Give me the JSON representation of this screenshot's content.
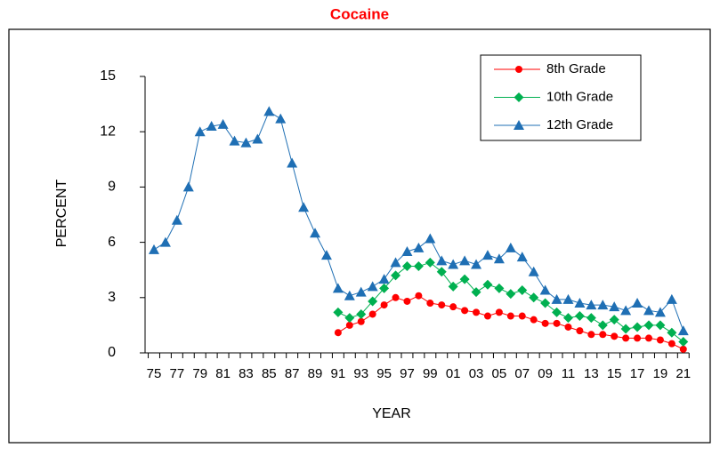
{
  "chart_data": {
    "type": "line",
    "title": "Cocaine",
    "x_label": "YEAR",
    "y_label": "PERCENT",
    "categories": [
      "75",
      null,
      "77",
      null,
      "79",
      null,
      "81",
      null,
      "83",
      null,
      "85",
      null,
      "87",
      null,
      "89",
      null,
      "91",
      null,
      "93",
      null,
      "95",
      null,
      "97",
      null,
      "99",
      null,
      "01",
      null,
      "03",
      null,
      "05",
      null,
      "07",
      null,
      "09",
      null,
      "11",
      null,
      "13",
      null,
      "15",
      null,
      "17",
      null,
      "19",
      null,
      "21"
    ],
    "series": [
      {
        "name": "8th Grade",
        "color": "#ff0000",
        "marker": "circle",
        "values": [
          null,
          null,
          null,
          null,
          null,
          null,
          null,
          null,
          null,
          null,
          null,
          null,
          null,
          null,
          null,
          null,
          1.1,
          1.5,
          1.7,
          2.1,
          2.6,
          3.0,
          2.8,
          3.1,
          2.7,
          2.6,
          2.5,
          2.3,
          2.2,
          2.0,
          2.2,
          2.0,
          2.0,
          1.8,
          1.6,
          1.6,
          1.4,
          1.2,
          1.0,
          1.0,
          0.9,
          0.8,
          0.8,
          0.8,
          0.7,
          0.5,
          0.2
        ]
      },
      {
        "name": "10th Grade",
        "color": "#00b050",
        "marker": "diamond",
        "values": [
          null,
          null,
          null,
          null,
          null,
          null,
          null,
          null,
          null,
          null,
          null,
          null,
          null,
          null,
          null,
          null,
          2.2,
          1.9,
          2.1,
          2.8,
          3.5,
          4.2,
          4.7,
          4.7,
          4.9,
          4.4,
          3.6,
          4.0,
          3.3,
          3.7,
          3.5,
          3.2,
          3.4,
          3.0,
          2.7,
          2.2,
          1.9,
          2.0,
          1.9,
          1.5,
          1.8,
          1.3,
          1.4,
          1.5,
          1.5,
          1.1,
          0.6
        ]
      },
      {
        "name": "12th Grade",
        "color": "#1f6fb4",
        "marker": "triangle",
        "values": [
          5.6,
          6.0,
          7.2,
          9.0,
          12.0,
          12.3,
          12.4,
          11.5,
          11.4,
          11.6,
          13.1,
          12.7,
          10.3,
          7.9,
          6.5,
          5.3,
          3.5,
          3.1,
          3.3,
          3.6,
          4.0,
          4.9,
          5.5,
          5.7,
          6.2,
          5.0,
          4.8,
          5.0,
          4.8,
          5.3,
          5.1,
          5.7,
          5.2,
          4.4,
          3.4,
          2.9,
          2.9,
          2.7,
          2.6,
          2.6,
          2.5,
          2.3,
          2.7,
          2.3,
          2.2,
          2.9,
          1.2
        ]
      }
    ],
    "ylim": [
      0,
      15
    ],
    "yticks": [
      0,
      3,
      6,
      9,
      12,
      15
    ],
    "grid": false,
    "legend": "upper right"
  }
}
